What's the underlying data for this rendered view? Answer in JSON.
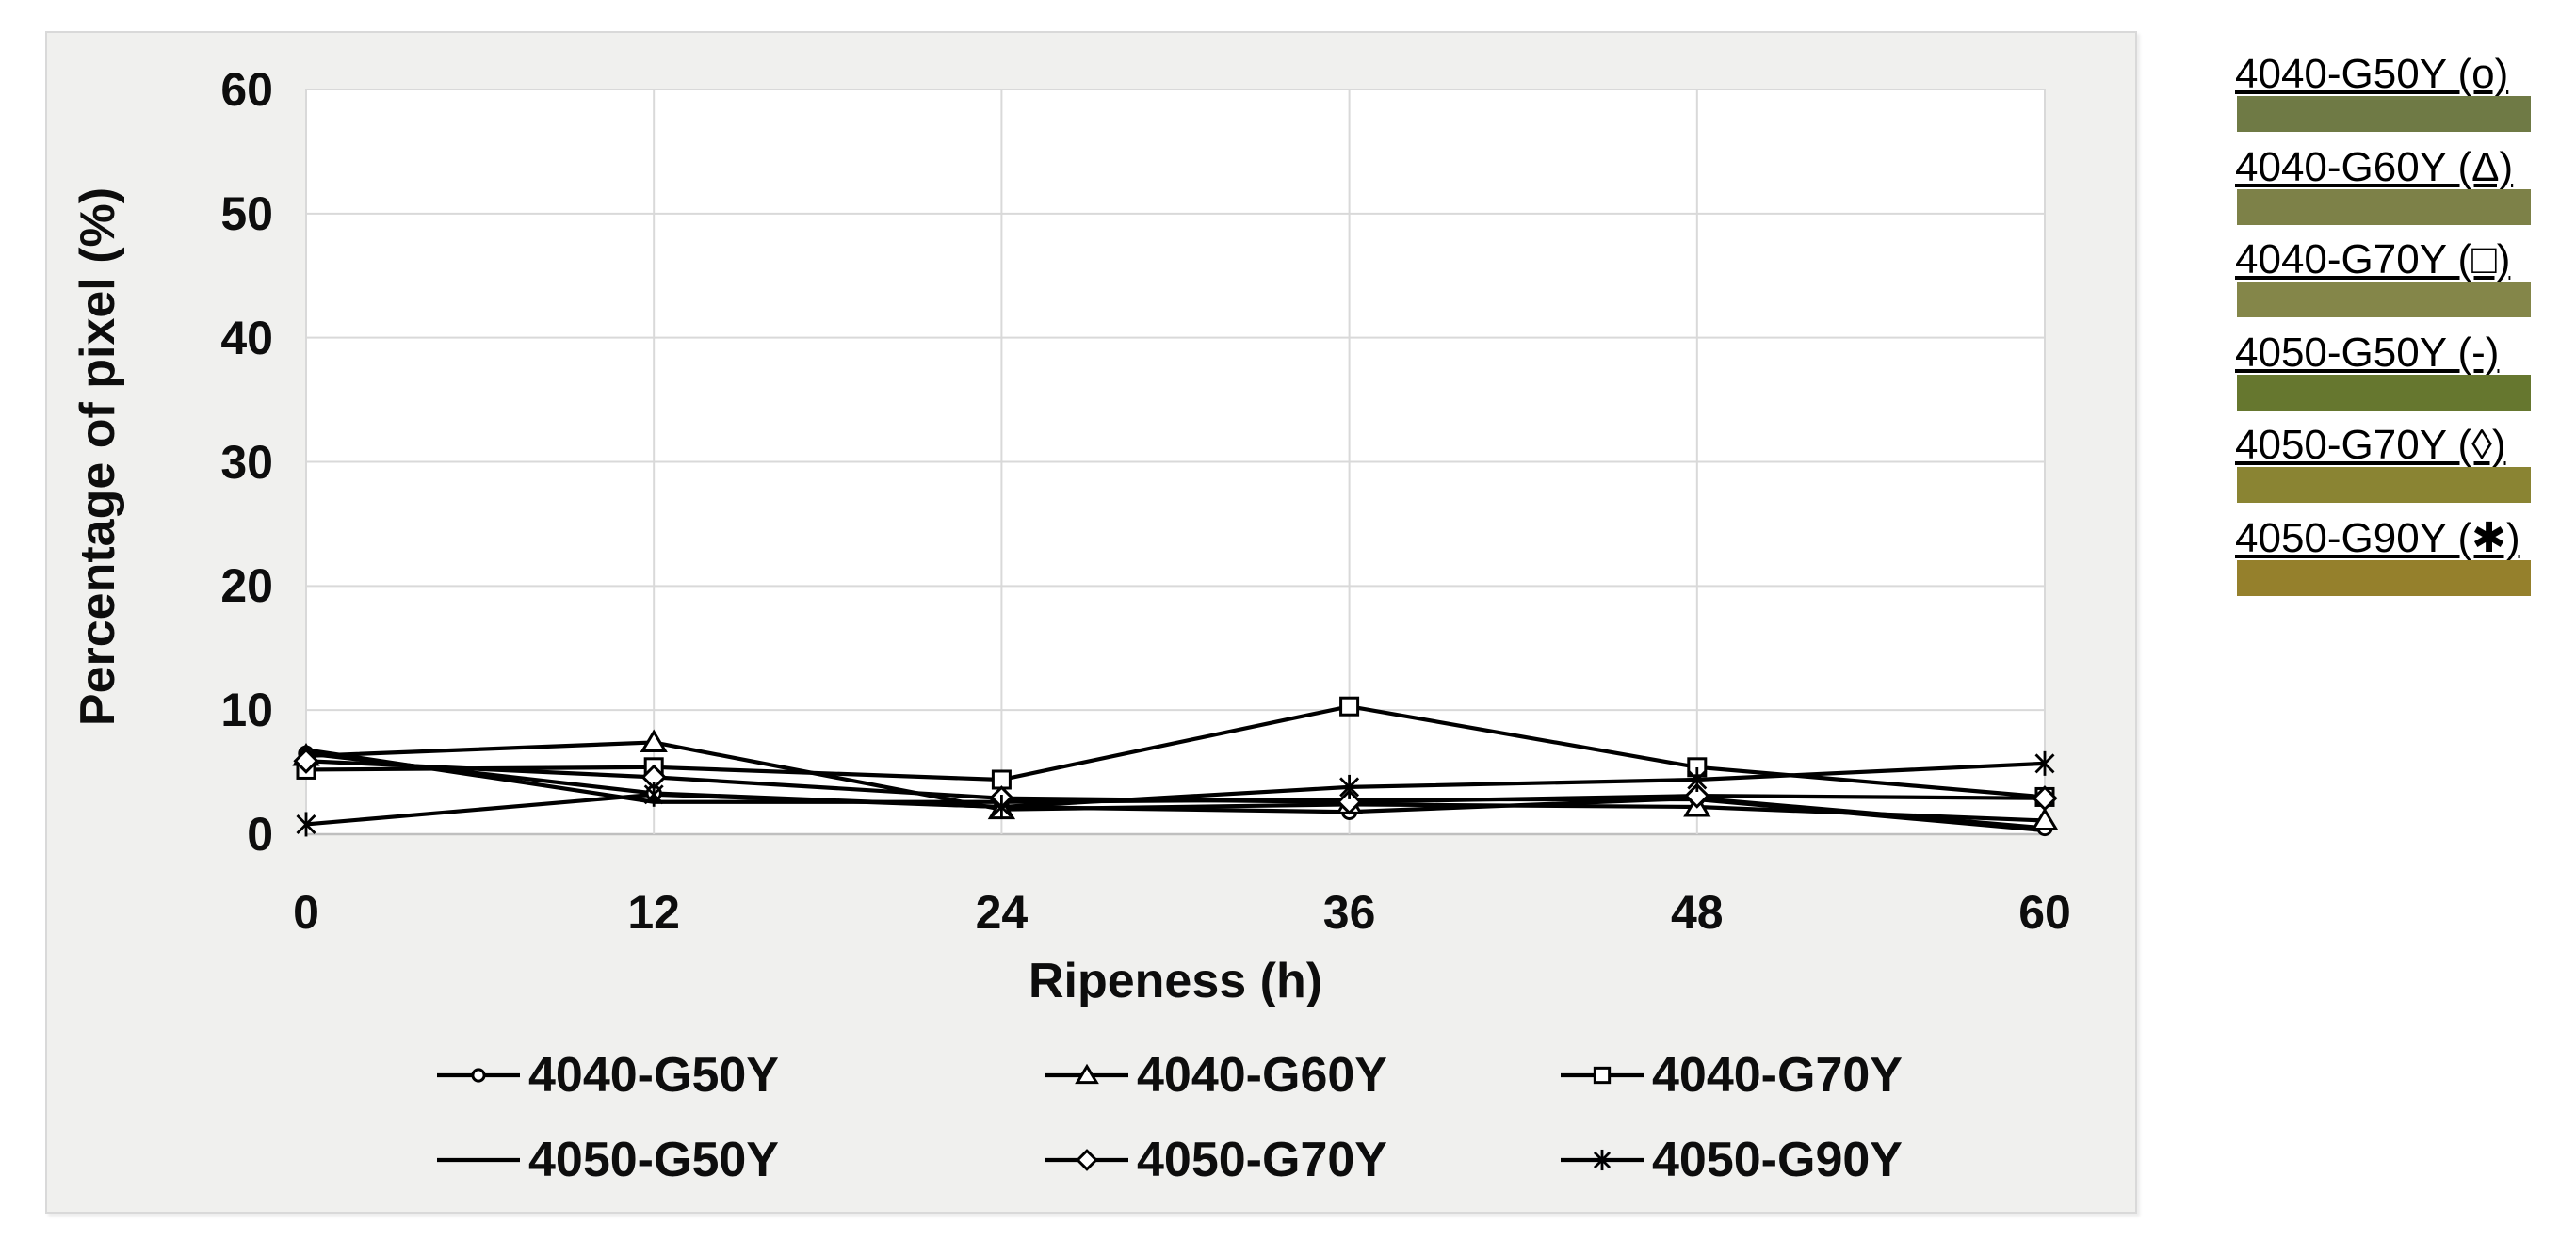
{
  "chart": {
    "background_color": "#f0f0ee",
    "border_color": "#d9d9d9",
    "plot_background_color": "#ffffff",
    "gridline_color": "#d9d9d9",
    "axis_line_color": "#bfbfbf",
    "series_color": "#000000",
    "text_color": "#0d0d0d"
  },
  "chart_data": {
    "type": "line",
    "title": "",
    "xlabel": "Ripeness (h)",
    "ylabel": "Percentage of pixel (%)",
    "x": [
      0,
      12,
      24,
      36,
      48,
      60
    ],
    "x_ticks": [
      0,
      12,
      24,
      36,
      48,
      60
    ],
    "y_ticks": [
      0,
      10,
      20,
      30,
      40,
      50,
      60
    ],
    "xlim": [
      0,
      60
    ],
    "ylim": [
      0,
      60
    ],
    "grid": true,
    "legend_position": "bottom",
    "series": [
      {
        "name": "4040-G50Y",
        "marker": "circle",
        "values": [
          6.5,
          3.3,
          2.2,
          1.8,
          2.9,
          0.5
        ]
      },
      {
        "name": "4040-G60Y",
        "marker": "triangle",
        "values": [
          6.3,
          7.4,
          2.0,
          2.4,
          2.2,
          1.1
        ]
      },
      {
        "name": "4040-G70Y",
        "marker": "square",
        "values": [
          5.2,
          5.4,
          4.4,
          10.3,
          5.4,
          3.0
        ]
      },
      {
        "name": "4050-G50Y",
        "marker": "none",
        "values": [
          6.8,
          2.6,
          2.6,
          2.8,
          2.8,
          0.3
        ]
      },
      {
        "name": "4050-G70Y",
        "marker": "diamond",
        "values": [
          5.9,
          4.6,
          2.9,
          2.6,
          3.1,
          2.9
        ]
      },
      {
        "name": "4050-G90Y",
        "marker": "star",
        "values": [
          0.8,
          3.2,
          2.2,
          3.8,
          4.4,
          5.7
        ]
      }
    ]
  },
  "side_panel": {
    "items": [
      {
        "label": "4040-G50Y (o)",
        "symbol": "o",
        "color": "#6F7A45"
      },
      {
        "label": "4040-G60Y (Δ)",
        "symbol": "Δ",
        "color": "#7D8148"
      },
      {
        "label": "4040-G70Y (□)",
        "symbol": "□",
        "color": "#848649"
      },
      {
        "label": "4050-G50Y (-)",
        "symbol": "-",
        "color": "#66772F"
      },
      {
        "label": "4050-G70Y (◊)",
        "symbol": "◊",
        "color": "#8A8433"
      },
      {
        "label": "4050-G90Y (✱)",
        "symbol": "✱",
        "color": "#95802C"
      }
    ]
  }
}
